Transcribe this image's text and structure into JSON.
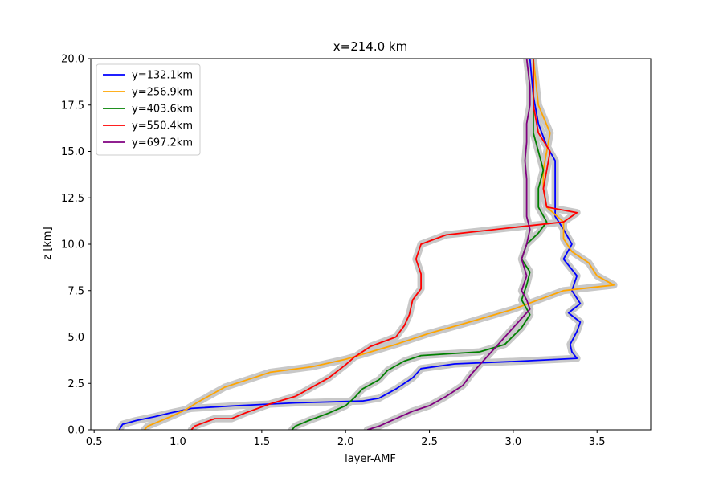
{
  "chart_data": {
    "type": "line",
    "title": "x=214.0 km",
    "xlabel": "layer-AMF",
    "ylabel": "z [km]",
    "xlim": [
      0.48,
      3.82
    ],
    "ylim": [
      0.0,
      20.0
    ],
    "xticks": [
      "0.5",
      "1.0",
      "1.5",
      "2.0",
      "2.5",
      "3.0",
      "3.5"
    ],
    "yticks": [
      "0.0",
      "2.5",
      "5.0",
      "7.5",
      "10.0",
      "12.5",
      "15.0",
      "17.5",
      "20.0"
    ],
    "grid": false,
    "legend_position": "top-left",
    "uncertainty_band_color": "#c8c8c8",
    "series": [
      {
        "name": "y=132.1km",
        "color": "#0000ff",
        "points": [
          [
            0.65,
            0.0
          ],
          [
            0.67,
            0.3
          ],
          [
            0.75,
            0.5
          ],
          [
            0.86,
            0.7
          ],
          [
            0.95,
            0.9
          ],
          [
            1.08,
            1.15
          ],
          [
            1.35,
            1.3
          ],
          [
            1.7,
            1.45
          ],
          [
            2.1,
            1.55
          ],
          [
            2.2,
            1.7
          ],
          [
            2.3,
            2.2
          ],
          [
            2.4,
            2.8
          ],
          [
            2.45,
            3.3
          ],
          [
            2.65,
            3.55
          ],
          [
            3.05,
            3.7
          ],
          [
            3.38,
            3.85
          ],
          [
            3.35,
            4.2
          ],
          [
            3.34,
            4.6
          ],
          [
            3.38,
            5.3
          ],
          [
            3.4,
            5.8
          ],
          [
            3.33,
            6.3
          ],
          [
            3.4,
            6.8
          ],
          [
            3.35,
            7.5
          ],
          [
            3.38,
            8.3
          ],
          [
            3.3,
            9.2
          ],
          [
            3.35,
            10.0
          ],
          [
            3.3,
            10.8
          ],
          [
            3.25,
            11.5
          ],
          [
            3.25,
            12.5
          ],
          [
            3.25,
            13.5
          ],
          [
            3.25,
            14.5
          ],
          [
            3.2,
            15.3
          ],
          [
            3.15,
            16.5
          ],
          [
            3.12,
            18.0
          ],
          [
            3.1,
            20.0
          ]
        ]
      },
      {
        "name": "y=256.9km",
        "color": "#ffa500",
        "points": [
          [
            0.8,
            0.0
          ],
          [
            0.82,
            0.2
          ],
          [
            0.9,
            0.5
          ],
          [
            0.98,
            0.8
          ],
          [
            1.05,
            1.1
          ],
          [
            1.12,
            1.5
          ],
          [
            1.2,
            1.9
          ],
          [
            1.28,
            2.3
          ],
          [
            1.45,
            2.8
          ],
          [
            1.55,
            3.1
          ],
          [
            1.8,
            3.4
          ],
          [
            2.0,
            3.8
          ],
          [
            2.15,
            4.2
          ],
          [
            2.3,
            4.6
          ],
          [
            2.5,
            5.2
          ],
          [
            2.7,
            5.7
          ],
          [
            2.85,
            6.1
          ],
          [
            3.0,
            6.5
          ],
          [
            3.15,
            7.0
          ],
          [
            3.3,
            7.5
          ],
          [
            3.6,
            7.8
          ],
          [
            3.5,
            8.3
          ],
          [
            3.45,
            9.0
          ],
          [
            3.35,
            9.6
          ],
          [
            3.3,
            10.3
          ],
          [
            3.3,
            11.2
          ],
          [
            3.2,
            12.0
          ],
          [
            3.18,
            13.0
          ],
          [
            3.18,
            14.0
          ],
          [
            3.2,
            15.0
          ],
          [
            3.22,
            16.0
          ],
          [
            3.15,
            17.5
          ],
          [
            3.12,
            20.0
          ]
        ]
      },
      {
        "name": "y=403.6km",
        "color": "#008000",
        "points": [
          [
            1.68,
            0.0
          ],
          [
            1.7,
            0.2
          ],
          [
            1.78,
            0.5
          ],
          [
            1.9,
            0.9
          ],
          [
            2.0,
            1.3
          ],
          [
            2.05,
            1.7
          ],
          [
            2.1,
            2.2
          ],
          [
            2.2,
            2.7
          ],
          [
            2.25,
            3.2
          ],
          [
            2.35,
            3.7
          ],
          [
            2.45,
            4.0
          ],
          [
            2.8,
            4.2
          ],
          [
            2.95,
            4.6
          ],
          [
            3.05,
            5.5
          ],
          [
            3.1,
            6.2
          ],
          [
            3.05,
            7.0
          ],
          [
            3.08,
            7.8
          ],
          [
            3.1,
            8.5
          ],
          [
            3.05,
            9.2
          ],
          [
            3.08,
            10.0
          ],
          [
            3.15,
            10.6
          ],
          [
            3.2,
            11.2
          ],
          [
            3.15,
            12.0
          ],
          [
            3.15,
            13.0
          ],
          [
            3.18,
            14.0
          ],
          [
            3.15,
            15.0
          ],
          [
            3.12,
            16.0
          ],
          [
            3.12,
            17.0
          ],
          [
            3.12,
            18.5
          ],
          [
            3.12,
            20.0
          ]
        ]
      },
      {
        "name": "y=550.4km",
        "color": "#ff0000",
        "points": [
          [
            1.08,
            0.0
          ],
          [
            1.1,
            0.2
          ],
          [
            1.22,
            0.6
          ],
          [
            1.32,
            0.6
          ],
          [
            1.4,
            0.9
          ],
          [
            1.55,
            1.4
          ],
          [
            1.7,
            1.8
          ],
          [
            1.8,
            2.3
          ],
          [
            1.9,
            2.8
          ],
          [
            2.0,
            3.5
          ],
          [
            2.05,
            3.9
          ],
          [
            2.15,
            4.5
          ],
          [
            2.3,
            5.0
          ],
          [
            2.35,
            5.6
          ],
          [
            2.38,
            6.2
          ],
          [
            2.4,
            7.0
          ],
          [
            2.45,
            7.6
          ],
          [
            2.45,
            8.4
          ],
          [
            2.42,
            9.2
          ],
          [
            2.45,
            10.0
          ],
          [
            2.6,
            10.5
          ],
          [
            3.0,
            10.9
          ],
          [
            3.3,
            11.2
          ],
          [
            3.38,
            11.7
          ],
          [
            3.2,
            12.0
          ],
          [
            3.18,
            13.0
          ],
          [
            3.2,
            14.0
          ],
          [
            3.22,
            15.0
          ],
          [
            3.15,
            16.0
          ],
          [
            3.12,
            17.5
          ],
          [
            3.12,
            20.0
          ]
        ]
      },
      {
        "name": "y=697.2km",
        "color": "#800080",
        "points": [
          [
            2.13,
            0.0
          ],
          [
            2.2,
            0.2
          ],
          [
            2.3,
            0.6
          ],
          [
            2.4,
            1.0
          ],
          [
            2.5,
            1.3
          ],
          [
            2.6,
            1.8
          ],
          [
            2.7,
            2.4
          ],
          [
            2.75,
            3.0
          ],
          [
            2.8,
            3.5
          ],
          [
            2.85,
            4.0
          ],
          [
            2.9,
            4.5
          ],
          [
            2.95,
            5.0
          ],
          [
            3.0,
            5.5
          ],
          [
            3.05,
            6.0
          ],
          [
            3.1,
            6.5
          ],
          [
            3.08,
            7.0
          ],
          [
            3.05,
            7.5
          ],
          [
            3.08,
            8.3
          ],
          [
            3.05,
            9.2
          ],
          [
            3.08,
            10.0
          ],
          [
            3.1,
            10.8
          ],
          [
            3.08,
            11.5
          ],
          [
            3.08,
            12.5
          ],
          [
            3.08,
            13.5
          ],
          [
            3.07,
            14.5
          ],
          [
            3.08,
            15.5
          ],
          [
            3.08,
            16.5
          ],
          [
            3.1,
            17.5
          ],
          [
            3.1,
            18.5
          ],
          [
            3.08,
            20.0
          ]
        ]
      }
    ]
  }
}
